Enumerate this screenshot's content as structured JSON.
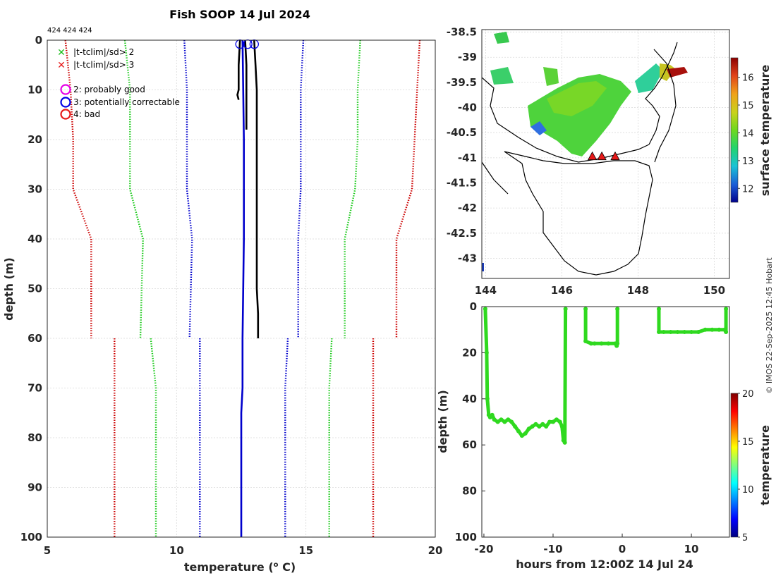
{
  "chart_data": [
    {
      "type": "line",
      "title": "Fish SOOP 14 Jul 2024",
      "top_annotation": "424 424 424",
      "xlabel_main": "temperature (",
      "xlabel_sup": "o",
      "xlabel_end": " C)",
      "ylabel": "depth (m)",
      "xlim": [
        5,
        20
      ],
      "ylim": [
        100,
        0
      ],
      "xticks": [
        5,
        10,
        15,
        20
      ],
      "yticks": [
        0,
        10,
        20,
        30,
        40,
        50,
        60,
        70,
        80,
        90,
        100
      ],
      "legend": [
        {
          "marker": "x",
          "color": "#1fbf1f",
          "label": "|t-tclim|/sd> 2"
        },
        {
          "marker": "x",
          "color": "#e61919",
          "label": "|t-tclim|/sd> 3"
        },
        {
          "marker": "o",
          "color": "#e600e6",
          "label": "2: probably good"
        },
        {
          "marker": "o",
          "color": "#0000e6",
          "label": "3: potentially correctable"
        },
        {
          "marker": "o",
          "color": "#e61919",
          "label": "4: bad"
        }
      ],
      "series": [
        {
          "name": "climatology -3sd (upper)",
          "color": "#cc0000",
          "style": "dotted",
          "depth": [
            0,
            10,
            20,
            30,
            40,
            60
          ],
          "temp": [
            5.7,
            5.9,
            6.0,
            6.0,
            6.7,
            6.7
          ]
        },
        {
          "name": "climatology -2sd (upper)",
          "color": "#22cc22",
          "style": "dotted",
          "depth": [
            0,
            10,
            20,
            30,
            40,
            60
          ],
          "temp": [
            8.0,
            8.2,
            8.2,
            8.2,
            8.7,
            8.6
          ]
        },
        {
          "name": "climatology -1sd (upper)",
          "color": "#0000cc",
          "style": "dotted",
          "depth": [
            0,
            10,
            20,
            30,
            40,
            60
          ],
          "temp": [
            10.3,
            10.4,
            10.4,
            10.4,
            10.6,
            10.5
          ]
        },
        {
          "name": "climatology +1sd (upper)",
          "color": "#0000cc",
          "style": "dotted",
          "depth": [
            0,
            10,
            20,
            30,
            40,
            60
          ],
          "temp": [
            14.9,
            14.8,
            14.8,
            14.8,
            14.7,
            14.7
          ]
        },
        {
          "name": "climatology +2sd (upper)",
          "color": "#22cc22",
          "style": "dotted",
          "depth": [
            0,
            10,
            20,
            30,
            40,
            60
          ],
          "temp": [
            17.1,
            17.0,
            17.0,
            16.9,
            16.5,
            16.5
          ]
        },
        {
          "name": "climatology +3sd (upper)",
          "color": "#cc0000",
          "style": "dotted",
          "depth": [
            0,
            10,
            20,
            30,
            40,
            60
          ],
          "temp": [
            19.4,
            19.3,
            19.2,
            19.1,
            18.5,
            18.5
          ]
        },
        {
          "name": "climatology -3sd (deep)",
          "color": "#cc0000",
          "style": "dotted",
          "depth": [
            60,
            100
          ],
          "temp": [
            7.6,
            7.6
          ]
        },
        {
          "name": "climatology -2sd (deep)",
          "color": "#22cc22",
          "style": "dotted",
          "depth": [
            60,
            70,
            100
          ],
          "temp": [
            9.0,
            9.2,
            9.2
          ]
        },
        {
          "name": "climatology -1sd (deep)",
          "color": "#0000cc",
          "style": "dotted",
          "depth": [
            60,
            100
          ],
          "temp": [
            10.9,
            10.9
          ]
        },
        {
          "name": "climatology +1sd (deep)",
          "color": "#0000cc",
          "style": "dotted",
          "depth": [
            60,
            70,
            100
          ],
          "temp": [
            14.3,
            14.2,
            14.2
          ]
        },
        {
          "name": "climatology +2sd (deep)",
          "color": "#22cc22",
          "style": "dotted",
          "depth": [
            60,
            70,
            100
          ],
          "temp": [
            16.0,
            15.9,
            15.9
          ]
        },
        {
          "name": "climatology +3sd (deep)",
          "color": "#cc0000",
          "style": "dotted",
          "depth": [
            60,
            70,
            100
          ],
          "temp": [
            17.6,
            17.6,
            17.6
          ]
        },
        {
          "name": "profile 1",
          "color": "#000000",
          "style": "solid",
          "depth": [
            0,
            5,
            10,
            11,
            12
          ],
          "temp": [
            12.45,
            12.4,
            12.4,
            12.35,
            12.4
          ]
        },
        {
          "name": "profile 2",
          "color": "#000000",
          "style": "solid",
          "depth": [
            0,
            5,
            10,
            15,
            18
          ],
          "temp": [
            12.65,
            12.7,
            12.7,
            12.7,
            12.7
          ]
        },
        {
          "name": "profile 3",
          "color": "#000000",
          "style": "solid",
          "depth": [
            0,
            5,
            10,
            20,
            30,
            40,
            50,
            55,
            60
          ],
          "temp": [
            13.0,
            13.05,
            13.1,
            13.1,
            13.1,
            13.1,
            13.1,
            13.15,
            13.15
          ]
        },
        {
          "name": "mean profile",
          "color": "#0000cc",
          "style": "solid",
          "depth": [
            0,
            20,
            40,
            60,
            70,
            75,
            100
          ],
          "temp": [
            12.55,
            12.6,
            12.6,
            12.55,
            12.55,
            12.5,
            12.5
          ]
        }
      ],
      "flag_markers": [
        {
          "label": "3",
          "depth": 0.8,
          "temp": 12.45
        },
        {
          "label": "3",
          "depth": 0.8,
          "temp": 12.75
        },
        {
          "label": "3",
          "depth": 0.8,
          "temp": 13.0
        }
      ]
    },
    {
      "type": "heatmap",
      "subtype": "map",
      "xlim": [
        143.9,
        150.4
      ],
      "ylim": [
        -43.4,
        -38.45
      ],
      "xticks": [
        144,
        146,
        148,
        150
      ],
      "yticks": [
        -38.5,
        -39,
        -39.5,
        -40,
        -40.5,
        -41,
        -41.5,
        -42,
        -42.5,
        -43
      ],
      "colorbar_label": "surface temperature",
      "colorbar_range": [
        11.5,
        16.7
      ],
      "colorbar_ticks": [
        12,
        13,
        14,
        15,
        16
      ],
      "ship_positions": [
        {
          "lon": 146.8,
          "lat": -40.97
        },
        {
          "lon": 147.05,
          "lat": -40.97
        },
        {
          "lon": 147.4,
          "lat": -40.97
        }
      ]
    },
    {
      "type": "scatter",
      "xlabel": "hours from 12:00Z 14 Jul 24",
      "ylabel": "depth (m)",
      "xlim": [
        -20.3,
        15.5
      ],
      "ylim": [
        100,
        0
      ],
      "xticks": [
        -20,
        -10,
        0,
        10
      ],
      "yticks": [
        0,
        20,
        40,
        60,
        80,
        100
      ],
      "colorbar_label": "temperature",
      "colorbar_range": [
        5,
        20
      ],
      "colorbar_ticks": [
        5,
        10,
        15,
        20
      ],
      "tracks": [
        {
          "hours": [
            -19.8,
            -19.6,
            -19.5,
            -19.3,
            -19.1,
            -18.8,
            -18.5,
            -18.0,
            -17.5,
            -17.0,
            -16.5,
            -16.0,
            -15.5,
            -15.0,
            -14.5,
            -14.0,
            -13.5,
            -13.0,
            -12.5,
            -12.0,
            -11.5,
            -11.0,
            -10.5,
            -10.0,
            -9.5,
            -9.0,
            -8.7,
            -8.5,
            -8.3,
            -8.2
          ],
          "depth": [
            1,
            20,
            40,
            47,
            48,
            47,
            49,
            50,
            49,
            50,
            49,
            50,
            52,
            54,
            56,
            55,
            53,
            52,
            51,
            52,
            51,
            52,
            50,
            50,
            49,
            50,
            52,
            58,
            59,
            1
          ]
        },
        {
          "hours": [
            -5.3,
            -5.3,
            -4.5,
            -4.0,
            -3.0,
            -2.0,
            -1.0,
            -0.8,
            -0.7,
            -0.7
          ],
          "depth": [
            1,
            15,
            16,
            16,
            16,
            16,
            16,
            17,
            16,
            1
          ]
        },
        {
          "hours": [
            5.3,
            5.3,
            6.0,
            7.0,
            8.0,
            9.0,
            10.0,
            11.0,
            12.0,
            13.0,
            14.0,
            14.8,
            15.0,
            15.0
          ],
          "depth": [
            1,
            11,
            11,
            11,
            11,
            11,
            11,
            11,
            10,
            10,
            10,
            10,
            11,
            1
          ]
        }
      ]
    }
  ],
  "credit": "© IMOS 22-Sep-2025 12:45 Hobart",
  "colors": {
    "green_track": "#2fd91f",
    "map_land_stroke": "#000000"
  }
}
